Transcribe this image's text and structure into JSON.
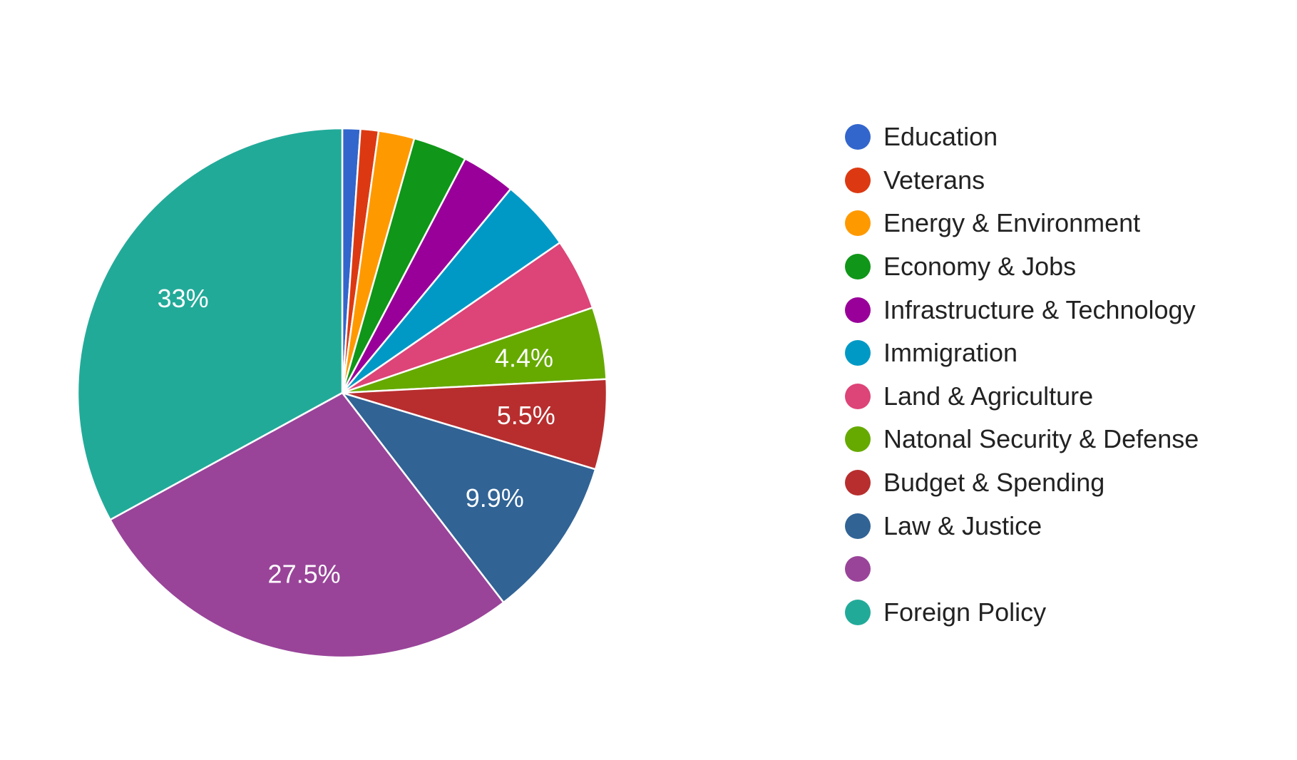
{
  "chart_data": {
    "type": "pie",
    "slices": [
      {
        "name": "Education",
        "value": 1.1,
        "color": "#3366cc",
        "label": ""
      },
      {
        "name": "Veterans",
        "value": 1.1,
        "color": "#dc3912",
        "label": ""
      },
      {
        "name": "Energy & Environment",
        "value": 2.2,
        "color": "#ff9900",
        "label": ""
      },
      {
        "name": "Economy & Jobs",
        "value": 3.3,
        "color": "#109618",
        "label": ""
      },
      {
        "name": "Infrastructure & Technology",
        "value": 3.3,
        "color": "#990099",
        "label": ""
      },
      {
        "name": "Immigration",
        "value": 4.4,
        "color": "#0099c6",
        "label": ""
      },
      {
        "name": "Land & Agriculture",
        "value": 4.4,
        "color": "#dd4477",
        "label": ""
      },
      {
        "name": "Natonal Security & Defense",
        "value": 4.4,
        "color": "#66aa00",
        "label": "4.4%"
      },
      {
        "name": "Budget & Spending",
        "value": 5.5,
        "color": "#b82e2e",
        "label": "5.5%"
      },
      {
        "name": "Law & Justice",
        "value": 9.9,
        "color": "#316395",
        "label": "9.9%"
      },
      {
        "name": "",
        "value": 27.5,
        "color": "#994499",
        "label": "27.5%"
      },
      {
        "name": "Foreign Policy",
        "value": 33,
        "color": "#22aa99",
        "label": "33%"
      }
    ],
    "legend_position": "right",
    "start_angle": "top, clockwise"
  }
}
